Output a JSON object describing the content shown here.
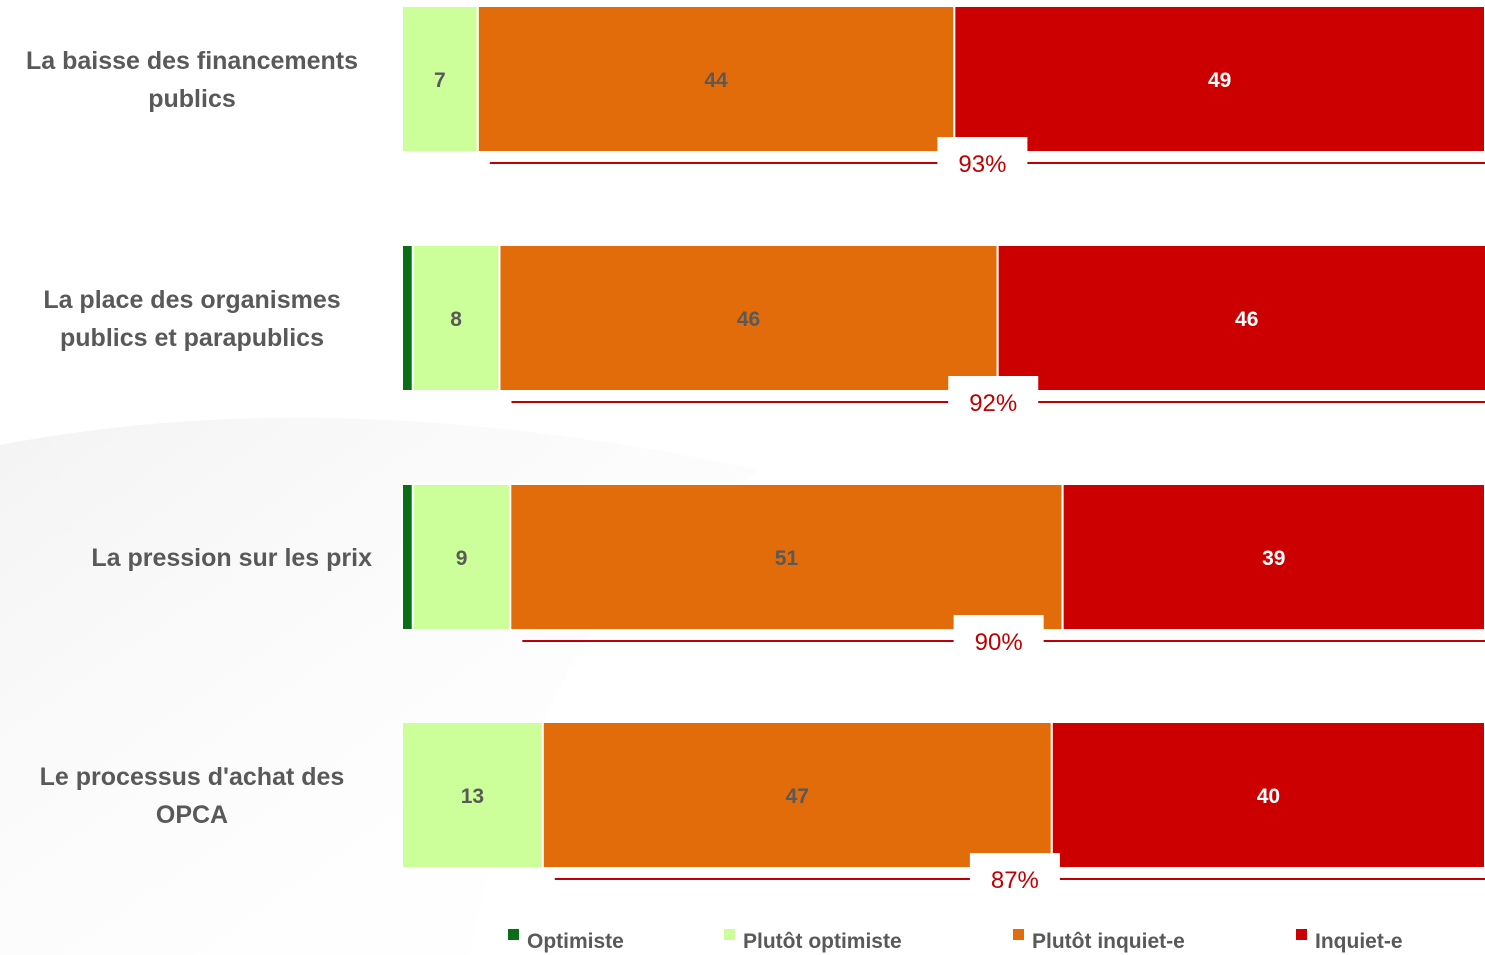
{
  "chart_data": {
    "type": "bar",
    "orientation": "horizontal",
    "stacked": true,
    "categories": [
      [
        "La baisse des financements",
        "publics"
      ],
      [
        "La place des organismes",
        "publics et parapublics"
      ],
      [
        "La pression sur les prix"
      ],
      [
        "Le processus d'achat des",
        "OPCA"
      ]
    ],
    "series": [
      {
        "name": "Optimiste",
        "color": "#0a6e16",
        "values": [
          0,
          1,
          1,
          0
        ],
        "labels": [
          "",
          "",
          "",
          ""
        ],
        "label_color": "#595959"
      },
      {
        "name": "Plutôt optimiste",
        "color": "#ccff99",
        "values": [
          7,
          8,
          9,
          13
        ],
        "labels": [
          "7",
          "8",
          "9",
          "13"
        ],
        "label_color": "#595959"
      },
      {
        "name": "Plutôt inquiet-e",
        "color": "#e36c0a",
        "values": [
          44,
          46,
          51,
          47
        ],
        "labels": [
          "44",
          "46",
          "51",
          "47"
        ],
        "label_color": "#595959"
      },
      {
        "name": "Inquiet-e",
        "color": "#cc0000",
        "values": [
          49,
          46,
          39,
          40
        ],
        "labels": [
          "49",
          "46",
          "39",
          "40"
        ],
        "label_color": "#ffffff"
      }
    ],
    "totals": {
      "labels": [
        "93%",
        "92%",
        "90%",
        "87%"
      ],
      "color": "#c00000"
    },
    "xlim": [
      0,
      100
    ],
    "grid": false,
    "legend": "bottom"
  }
}
